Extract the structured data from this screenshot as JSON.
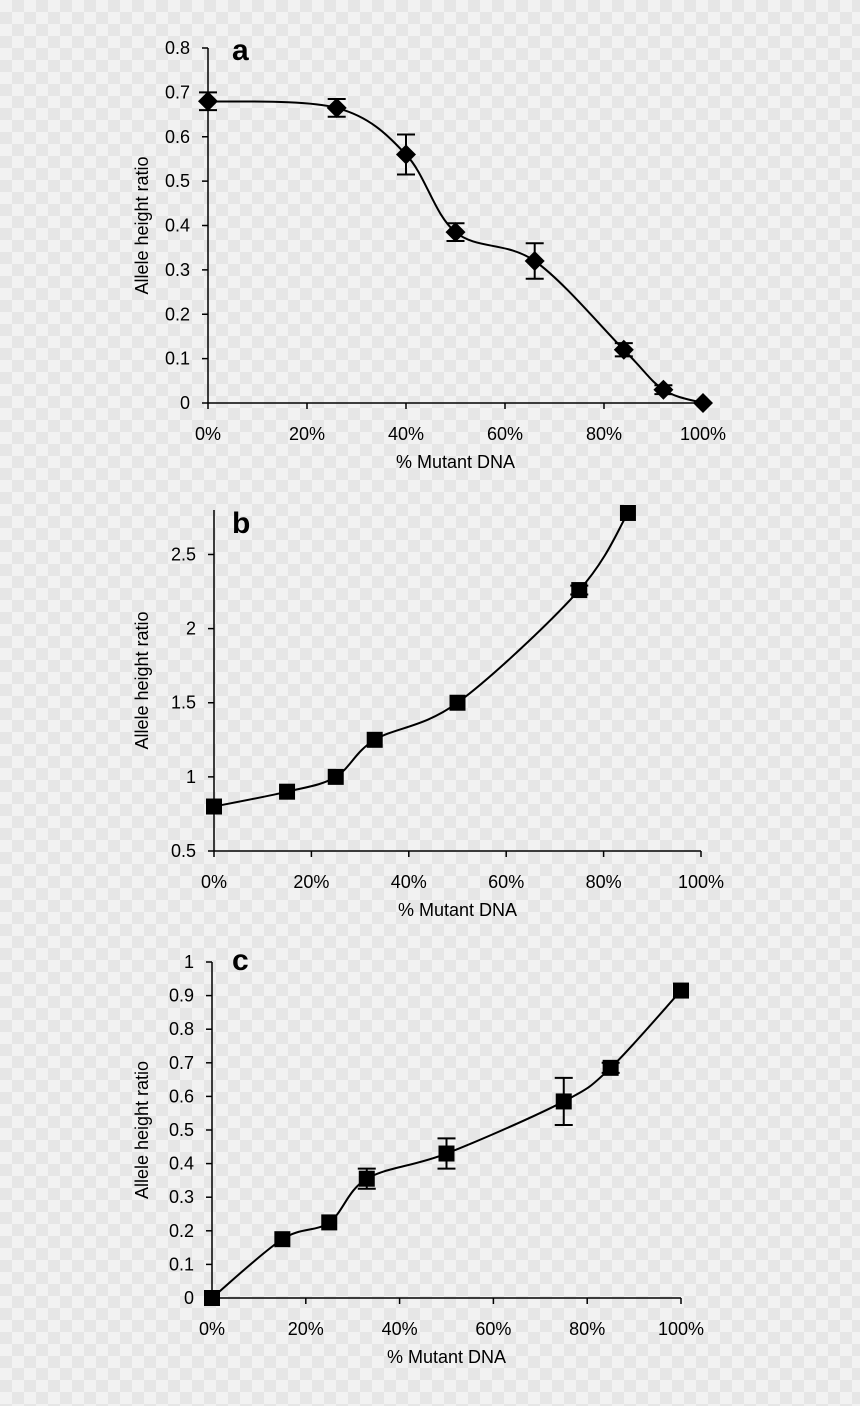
{
  "chart_data": [
    {
      "type": "scatter",
      "panel_label": "a",
      "xlabel": "% Mutant DNA",
      "ylabel": "Allele height ratio",
      "xlim": [
        0,
        100
      ],
      "ylim": [
        0,
        0.8
      ],
      "xticks": [
        "0%",
        "20%",
        "40%",
        "60%",
        "80%",
        "100%"
      ],
      "yticks": [
        "0",
        "0.1",
        "0.2",
        "0.3",
        "0.4",
        "0.5",
        "0.6",
        "0.7",
        "0.8"
      ],
      "marker": "diamond",
      "x": [
        0,
        26,
        40,
        50,
        66,
        84,
        92,
        100
      ],
      "y": [
        0.68,
        0.665,
        0.56,
        0.385,
        0.32,
        0.12,
        0.03,
        0.0
      ],
      "yerr": [
        0.02,
        0.02,
        0.045,
        0.02,
        0.04,
        0.015,
        0.01,
        0.0
      ],
      "fit": "smooth curve"
    },
    {
      "type": "scatter",
      "panel_label": "b",
      "xlabel": "% Mutant DNA",
      "ylabel": "Allele height ratio",
      "xlim": [
        0,
        100
      ],
      "ylim": [
        0.5,
        2.8
      ],
      "xticks": [
        "0%",
        "20%",
        "40%",
        "60%",
        "80%",
        "100%"
      ],
      "yticks": [
        "0.5",
        "1",
        "1.5",
        "2",
        "2.5"
      ],
      "marker": "square",
      "x": [
        0,
        15,
        25,
        33,
        50,
        75,
        85
      ],
      "y": [
        0.8,
        0.9,
        1.0,
        1.25,
        1.5,
        2.26,
        2.78
      ],
      "yerr": [
        0.0,
        0.0,
        0.0,
        0.0,
        0.0,
        0.03,
        0.0
      ],
      "fit": "exponential-like curve"
    },
    {
      "type": "scatter",
      "panel_label": "c",
      "xlabel": "% Mutant DNA",
      "ylabel": "Allele height ratio",
      "xlim": [
        0,
        100
      ],
      "ylim": [
        0,
        1
      ],
      "xticks": [
        "0%",
        "20%",
        "40%",
        "60%",
        "80%",
        "100%"
      ],
      "yticks": [
        "0",
        "0.1",
        "0.2",
        "0.3",
        "0.4",
        "0.5",
        "0.6",
        "0.7",
        "0.8",
        "0.9",
        "1"
      ],
      "marker": "square",
      "x": [
        0,
        15,
        25,
        33,
        50,
        75,
        85,
        100
      ],
      "y": [
        0.0,
        0.175,
        0.225,
        0.355,
        0.43,
        0.585,
        0.685,
        0.915
      ],
      "yerr": [
        0.0,
        0.0,
        0.0,
        0.03,
        0.045,
        0.07,
        0.015,
        0.0
      ],
      "fit": "smooth curve"
    }
  ]
}
